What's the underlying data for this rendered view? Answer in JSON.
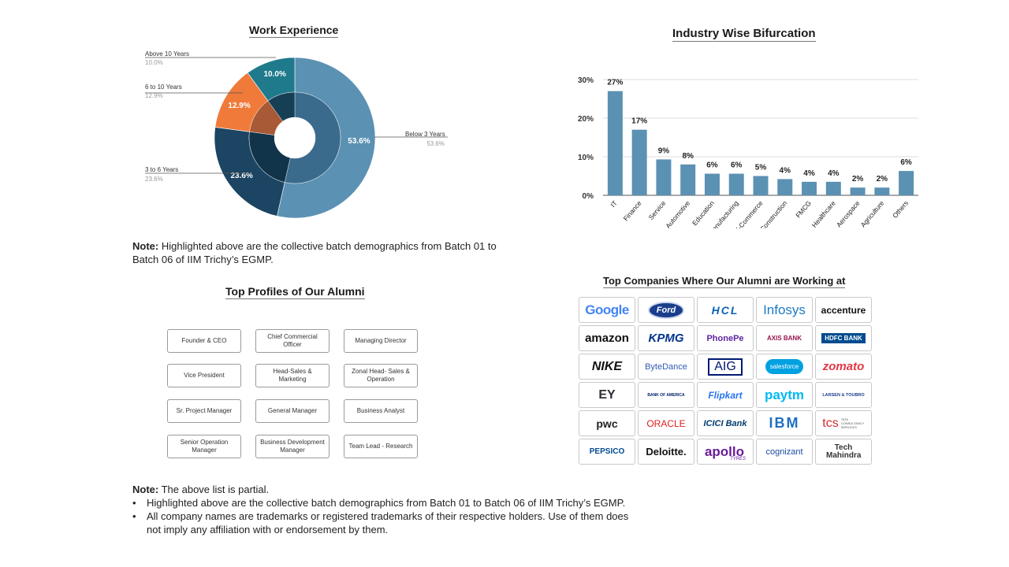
{
  "titles": {
    "work_experience": "Work Experience",
    "industry": "Industry Wise Bifurcation",
    "profiles": "Top Profiles of Our Alumni",
    "companies": "Top Companies Where Our Alumni are Working at"
  },
  "chart_data": [
    {
      "type": "pie",
      "title": "Work Experience",
      "categories": [
        "Below 3 Years",
        "3 to 6 Years",
        "6 to 10 Years",
        "Above 10 Years"
      ],
      "values": [
        53.6,
        23.6,
        12.9,
        10.0
      ],
      "labels": [
        "53.6%",
        "23.6%",
        "12.9%",
        "10.0%"
      ],
      "colors": [
        "#5b91b3",
        "#1b4562",
        "#ef7a3a",
        "#1f7a8c"
      ],
      "inner_colors": [
        "#3a6b8d",
        "#12344b",
        "#a85a36",
        "#163f55"
      ],
      "legend_values": [
        "53.6%",
        "23.6%",
        "12.9%",
        "10.0%"
      ]
    },
    {
      "type": "bar",
      "title": "Industry Wise Bifurcation",
      "categories": [
        "IT",
        "Finance",
        "Service",
        "Automotive",
        "Education",
        "Manufacturing",
        "E-Commerce",
        "Construction",
        "FMCG",
        "Healthcare",
        "Aerospace",
        "Agriculture",
        "Others"
      ],
      "values": [
        27,
        17,
        9.3,
        8,
        5.6,
        5.6,
        5,
        4.2,
        3.5,
        3.5,
        2,
        2,
        6.3
      ],
      "data_labels": [
        "27%",
        "17%",
        "9%",
        "8%",
        "6%",
        "6%",
        "5%",
        "4%",
        "4%",
        "4%",
        "2%",
        "2%",
        "6%"
      ],
      "yticks": [
        "0%",
        "10%",
        "20%",
        "30%"
      ],
      "ylim": [
        0,
        30
      ],
      "grid": true,
      "color": "#5b91b3"
    }
  ],
  "note1": {
    "label": "Note:",
    "line1": " Highlighted above are the collective batch demographics from Batch 01 to",
    "line2": " Batch 06 of IIM Trichy’s EGMP."
  },
  "profiles": [
    "Founder & CEO",
    "Chief Commercial Officer",
    "Managing Director",
    "Vice President",
    "Head-Sales & Marketing",
    "Zonal Head- Sales & Operation",
    "Sr. Project Manager",
    "General Manager",
    "Business Analyst",
    "Senior Operation Manager",
    "Business Development Manager",
    "Team Lead - Research"
  ],
  "companies": [
    "Google",
    "Ford",
    "HCL",
    "Infosys",
    "accenture",
    "amazon",
    "KPMG",
    "PhonePe",
    "AXIS BANK",
    "HDFC BANK",
    "NIKE",
    "ByteDance",
    "AIG",
    "salesforce",
    "zomato",
    "EY",
    "BANK OF AMERICA",
    "Flipkart",
    "paytm",
    "LARSEN & TOUBRO",
    "pwc",
    "ORACLE",
    "ICICI Bank",
    "IBM",
    "tcs",
    "PEPSICO",
    "Deloitte.",
    "apollo",
    "cognizant",
    "Tech Mahindra"
  ],
  "company_extras": {
    "apollo_sub": "TYRES",
    "tcs_sub": "TATA CONSULTANCY SERVICES"
  },
  "note2": {
    "label": "Note:",
    "text": "  The above list is partial.",
    "bullets": [
      "Highlighted above are the collective batch demographics from Batch 01 to Batch 06 of IIM Trichy’s EGMP.",
      "All company names are trademarks or registered trademarks of their respective holders. Use of them does not imply any affiliation with or endorsement by them."
    ]
  }
}
